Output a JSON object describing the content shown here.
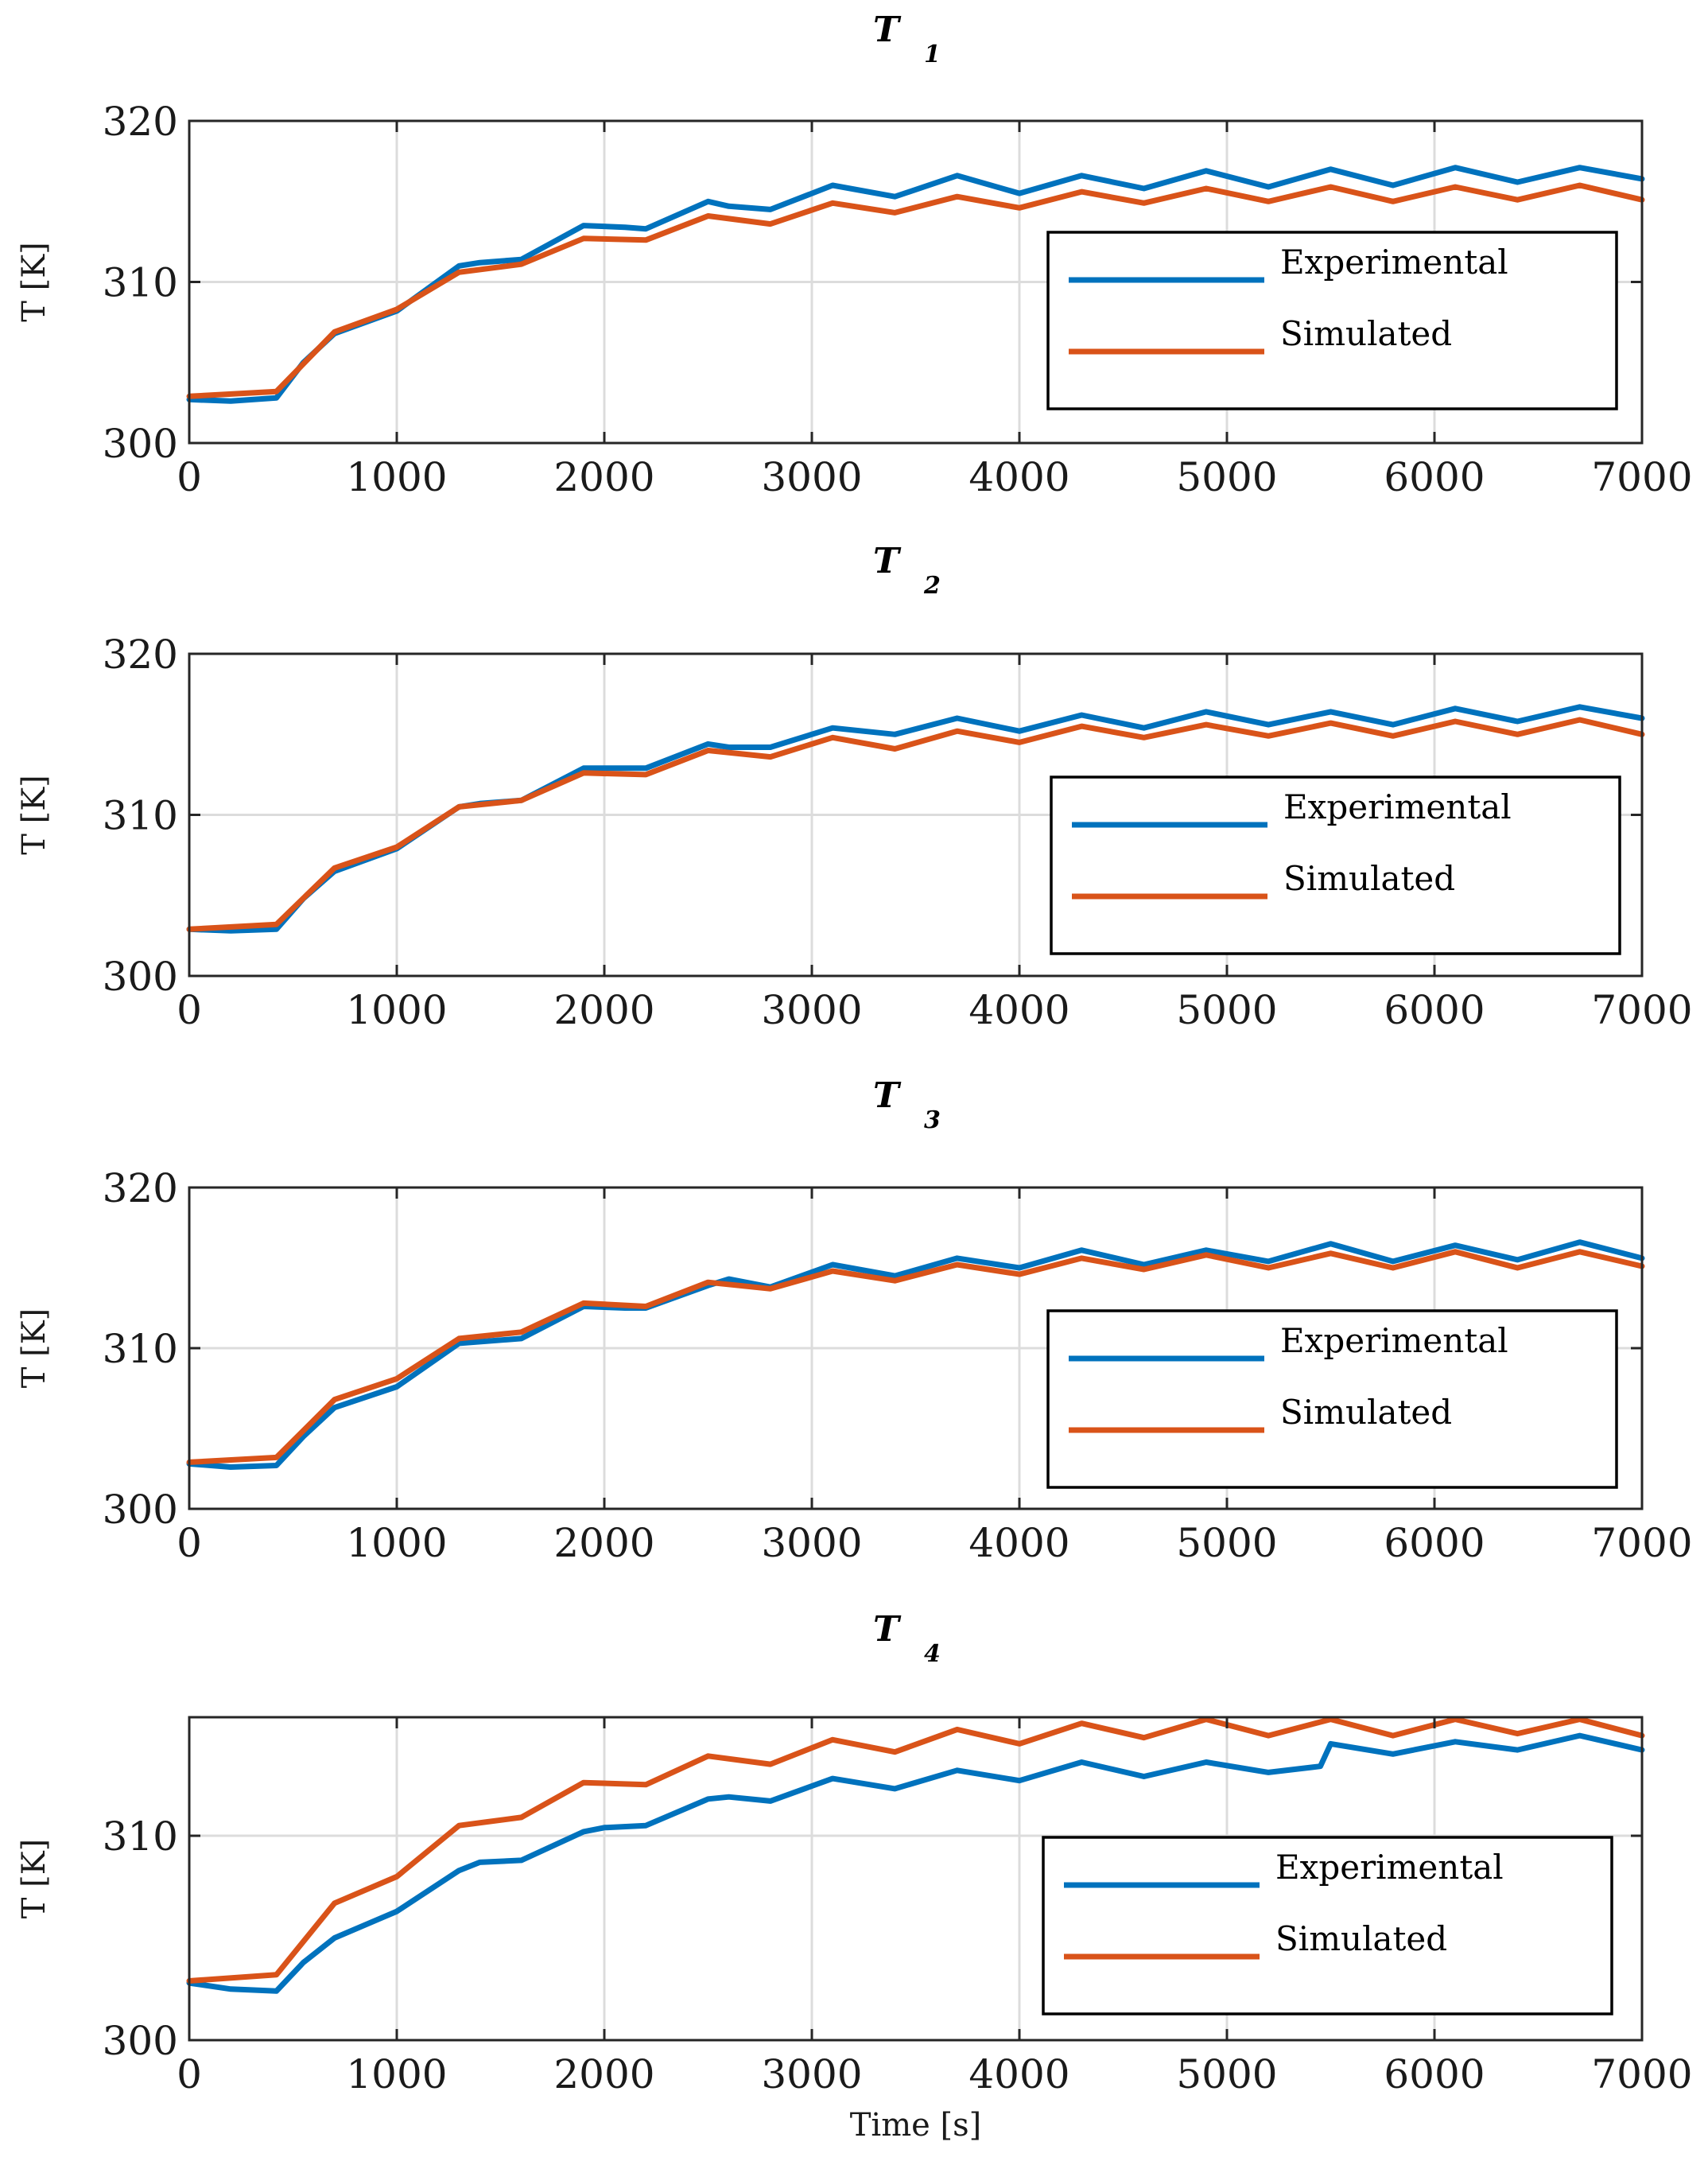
{
  "chart_data": [
    {
      "type": "line",
      "title": "T",
      "title_sub": "1",
      "xlabel": "",
      "ylabel": "T [K]",
      "xlim": [
        0,
        7000
      ],
      "ylim": [
        300,
        320
      ],
      "xticks": [
        0,
        1000,
        2000,
        3000,
        4000,
        5000,
        6000,
        7000
      ],
      "yticks": [
        300,
        310,
        320
      ],
      "grid": true,
      "legend_position": "center-right",
      "series": [
        {
          "name": "Experimental",
          "color": "#0072BD",
          "x": [
            0,
            200,
            420,
            550,
            700,
            1000,
            1300,
            1400,
            1600,
            1900,
            2100,
            2200,
            2500,
            2600,
            2800,
            3100,
            3400,
            3700,
            4000,
            4300,
            4600,
            4900,
            5200,
            5500,
            5800,
            6100,
            6400,
            6700,
            7000
          ],
          "y": [
            302.7,
            302.6,
            302.8,
            305.0,
            306.8,
            308.2,
            311.0,
            311.2,
            311.4,
            313.5,
            313.4,
            313.3,
            315.0,
            314.7,
            314.5,
            316.0,
            315.3,
            316.6,
            315.5,
            316.6,
            315.8,
            316.9,
            315.9,
            317.0,
            316.0,
            317.1,
            316.2,
            317.1,
            316.4
          ]
        },
        {
          "name": "Simulated",
          "color": "#D95319",
          "x": [
            0,
            420,
            700,
            1000,
            1300,
            1600,
            1900,
            2200,
            2500,
            2800,
            3100,
            3400,
            3700,
            4000,
            4300,
            4600,
            4900,
            5200,
            5500,
            5800,
            6100,
            6400,
            6700,
            7000
          ],
          "y": [
            302.9,
            303.2,
            306.9,
            308.3,
            310.6,
            311.1,
            312.7,
            312.6,
            314.1,
            313.6,
            314.9,
            314.3,
            315.3,
            314.6,
            315.6,
            314.9,
            315.8,
            315.0,
            315.9,
            315.0,
            315.9,
            315.1,
            316.0,
            315.1
          ]
        }
      ]
    },
    {
      "type": "line",
      "title": "T",
      "title_sub": "2",
      "xlabel": "",
      "ylabel": "T [K]",
      "xlim": [
        0,
        7000
      ],
      "ylim": [
        300,
        320
      ],
      "xticks": [
        0,
        1000,
        2000,
        3000,
        4000,
        5000,
        6000,
        7000
      ],
      "yticks": [
        300,
        310,
        320
      ],
      "grid": true,
      "legend_position": "center-right",
      "series": [
        {
          "name": "Experimental",
          "color": "#0072BD",
          "x": [
            0,
            200,
            420,
            550,
            700,
            1000,
            1300,
            1400,
            1600,
            1900,
            2100,
            2200,
            2500,
            2600,
            2800,
            3100,
            3400,
            3700,
            4000,
            4300,
            4600,
            4900,
            5200,
            5500,
            5800,
            6100,
            6400,
            6700,
            7000
          ],
          "y": [
            302.9,
            302.8,
            302.9,
            304.8,
            306.5,
            307.9,
            310.5,
            310.7,
            310.9,
            312.9,
            312.9,
            312.9,
            314.4,
            314.2,
            314.2,
            315.4,
            315.0,
            316.0,
            315.2,
            316.2,
            315.4,
            316.4,
            315.6,
            316.4,
            315.6,
            316.6,
            315.8,
            316.7,
            316.0
          ]
        },
        {
          "name": "Simulated",
          "color": "#D95319",
          "x": [
            0,
            420,
            700,
            1000,
            1300,
            1600,
            1900,
            2200,
            2500,
            2800,
            3100,
            3400,
            3700,
            4000,
            4300,
            4600,
            4900,
            5200,
            5500,
            5800,
            6100,
            6400,
            6700,
            7000
          ],
          "y": [
            302.9,
            303.2,
            306.7,
            308.0,
            310.5,
            310.9,
            312.6,
            312.5,
            314.0,
            313.6,
            314.8,
            314.1,
            315.2,
            314.5,
            315.5,
            314.8,
            315.6,
            314.9,
            315.7,
            314.9,
            315.8,
            315.0,
            315.9,
            315.0
          ]
        }
      ]
    },
    {
      "type": "line",
      "title": "T",
      "title_sub": "3",
      "xlabel": "",
      "ylabel": "T [K]",
      "xlim": [
        0,
        7000
      ],
      "ylim": [
        300,
        320
      ],
      "xticks": [
        0,
        1000,
        2000,
        3000,
        4000,
        5000,
        6000,
        7000
      ],
      "yticks": [
        300,
        310,
        320
      ],
      "grid": true,
      "legend_position": "center-right",
      "series": [
        {
          "name": "Experimental",
          "color": "#0072BD",
          "x": [
            0,
            200,
            420,
            550,
            700,
            1000,
            1300,
            1400,
            1600,
            1900,
            2100,
            2200,
            2500,
            2600,
            2800,
            3100,
            3400,
            3700,
            4000,
            4300,
            4600,
            4900,
            5200,
            5500,
            5800,
            6100,
            6400,
            6700,
            7000
          ],
          "y": [
            302.8,
            302.6,
            302.7,
            304.5,
            306.3,
            307.6,
            310.3,
            310.4,
            310.6,
            312.6,
            312.5,
            312.5,
            313.9,
            314.3,
            313.8,
            315.2,
            314.5,
            315.6,
            315.0,
            316.1,
            315.2,
            316.1,
            315.4,
            316.5,
            315.4,
            316.4,
            315.5,
            316.6,
            315.6
          ]
        },
        {
          "name": "Simulated",
          "color": "#D95319",
          "x": [
            0,
            420,
            700,
            1000,
            1300,
            1600,
            1900,
            2200,
            2500,
            2800,
            3100,
            3400,
            3700,
            4000,
            4300,
            4600,
            4900,
            5200,
            5500,
            5800,
            6100,
            6400,
            6700,
            7000
          ],
          "y": [
            302.9,
            303.2,
            306.8,
            308.1,
            310.6,
            311.0,
            312.8,
            312.6,
            314.1,
            313.7,
            314.8,
            314.2,
            315.2,
            314.6,
            315.6,
            314.9,
            315.8,
            315.0,
            315.9,
            315.0,
            316.0,
            315.0,
            316.0,
            315.1
          ]
        }
      ]
    },
    {
      "type": "line",
      "title": "T",
      "title_sub": "4",
      "xlabel": "Time [s]",
      "ylabel": "T [K]",
      "xlim": [
        0,
        7000
      ],
      "ylim": [
        300,
        315.8
      ],
      "xticks": [
        0,
        1000,
        2000,
        3000,
        4000,
        5000,
        6000,
        7000
      ],
      "yticks": [
        300,
        310
      ],
      "grid": true,
      "legend_position": "center-right",
      "series": [
        {
          "name": "Experimental",
          "color": "#0072BD",
          "x": [
            0,
            200,
            420,
            550,
            700,
            1000,
            1300,
            1400,
            1600,
            1900,
            2000,
            2200,
            2500,
            2600,
            2800,
            3100,
            3400,
            3700,
            4000,
            4300,
            4600,
            4900,
            5200,
            5450,
            5500,
            5800,
            6100,
            6400,
            6700,
            7000
          ],
          "y": [
            302.8,
            302.5,
            302.4,
            303.8,
            305.0,
            306.3,
            308.3,
            308.7,
            308.8,
            310.2,
            310.4,
            310.5,
            311.8,
            311.9,
            311.7,
            312.8,
            312.3,
            313.2,
            312.7,
            313.6,
            312.9,
            313.6,
            313.1,
            313.4,
            314.5,
            314.0,
            314.6,
            314.2,
            314.9,
            314.2
          ]
        },
        {
          "name": "Simulated",
          "color": "#D95319",
          "x": [
            0,
            420,
            700,
            1000,
            1300,
            1600,
            1900,
            2200,
            2500,
            2800,
            3100,
            3400,
            3700,
            4000,
            4300,
            4600,
            4900,
            5200,
            5500,
            5800,
            6100,
            6400,
            6700,
            7000
          ],
          "y": [
            302.9,
            303.2,
            306.7,
            308.0,
            310.5,
            310.9,
            312.6,
            312.5,
            313.9,
            313.5,
            314.7,
            314.1,
            315.2,
            314.5,
            315.5,
            314.8,
            315.7,
            314.9,
            315.7,
            314.9,
            315.7,
            315.0,
            315.7,
            314.9
          ]
        }
      ]
    }
  ]
}
